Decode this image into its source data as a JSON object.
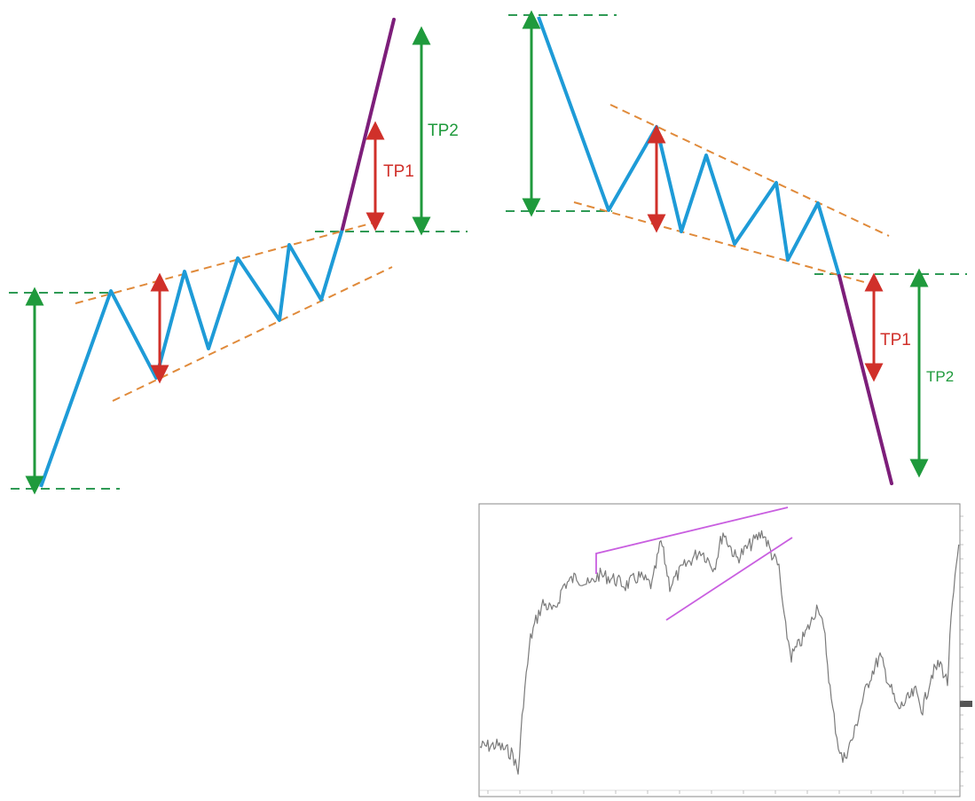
{
  "colors": {
    "zigzag": "#1e9bd7",
    "breakout": "#7d1e7a",
    "dashed_green": "#2f9a55",
    "dashed_orange": "#e08a3a",
    "arrow_green": "#1f9a3c",
    "arrow_red": "#d0302a",
    "label_red": "#d0302a",
    "label_green": "#1f9a3c",
    "chart_price": "#7a7a7a",
    "chart_trend": "#c95fe0",
    "chart_border": "#8a8a8a"
  },
  "rising_wedge": {
    "tp1_label": "TP1",
    "tp2_label": "TP2"
  },
  "falling_wedge": {
    "tp1_label": "TP1",
    "tp2_label": "TP2"
  },
  "price_chart": {
    "icons": [
      "rising-wedge-trendline-icon"
    ]
  }
}
